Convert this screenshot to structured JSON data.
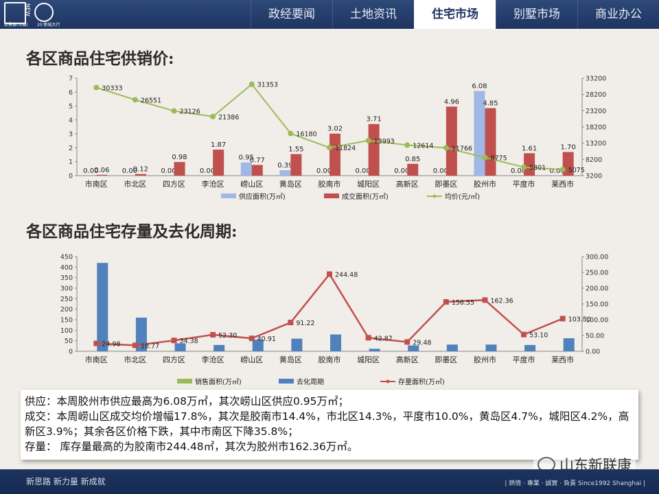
{
  "nav": {
    "logo_text1": "新景泰(中國)",
    "logo_text2": "20 新城大行",
    "logo_new": "NEW",
    "tabs": [
      {
        "label": "政经要闻",
        "active": false
      },
      {
        "label": "土地资讯",
        "active": false
      },
      {
        "label": "住宅市场",
        "active": true
      },
      {
        "label": "别墅市场",
        "active": false
      },
      {
        "label": "商业办公",
        "active": false
      }
    ]
  },
  "section1_title": "各区商品住宅供销价:",
  "section2_title": "各区商品住宅存量及去化周期:",
  "colors": {
    "supply": "#9fb8e6",
    "deal": "#c0504d",
    "price": "#9bbb59",
    "cycle": "#4f81bd",
    "stock": "#c0504d"
  },
  "chart_data": [
    {
      "type": "bar",
      "categories": [
        "市南区",
        "市北区",
        "四方区",
        "李沧区",
        "崂山区",
        "黄岛区",
        "胶南市",
        "城阳区",
        "高新区",
        "即墨区",
        "胶州市",
        "平度市",
        "莱西市"
      ],
      "series": [
        {
          "name": "供应面积(万㎡)",
          "type": "bar",
          "axis": "left",
          "values": [
            0.0,
            0.0,
            0.0,
            0.0,
            0.95,
            0.39,
            0.0,
            0.0,
            0.0,
            0.0,
            6.08,
            0.0,
            0.0
          ]
        },
        {
          "name": "成交面积(万㎡)",
          "type": "bar",
          "axis": "left",
          "values": [
            0.06,
            0.12,
            0.98,
            1.87,
            0.77,
            1.55,
            3.02,
            3.71,
            0.85,
            4.96,
            4.85,
            1.61,
            1.7
          ]
        },
        {
          "name": "均价(元/㎡)",
          "type": "line",
          "axis": "right",
          "values": [
            30333,
            26551,
            23126,
            21386,
            31353,
            16180,
            11824,
            13993,
            12614,
            11766,
            8775,
            5801,
            5075
          ]
        }
      ],
      "yticks_left": [
        "0",
        "1",
        "2",
        "3",
        "4",
        "5",
        "6",
        "7"
      ],
      "yticks_right": [
        "3200",
        "8200",
        "13200",
        "18200",
        "23200",
        "28200",
        "33200"
      ],
      "ylim_left": [
        0,
        7
      ],
      "ylim_right": [
        3200,
        33200
      ]
    },
    {
      "type": "bar",
      "categories": [
        "市南区",
        "市北区",
        "四方区",
        "李沧区",
        "崂山区",
        "黄岛区",
        "胶南市",
        "城阳区",
        "高新区",
        "即墨区",
        "胶州市",
        "平度市",
        "莱西市"
      ],
      "series": [
        {
          "name": "销售面积(万㎡)",
          "type": "bar",
          "axis": "left",
          "values": [
            0,
            0,
            0,
            0,
            0,
            0,
            0,
            0,
            0,
            0,
            0,
            0,
            0
          ]
        },
        {
          "name": "去化周期",
          "type": "bar",
          "axis": "left",
          "values": [
            420,
            160,
            38,
            30,
            55,
            60,
            80,
            12,
            28,
            32,
            32,
            30,
            62
          ]
        },
        {
          "name": "存量面积(万㎡)",
          "type": "line",
          "axis": "right",
          "values": [
            24.98,
            18.77,
            34.38,
            52.3,
            40.91,
            91.22,
            244.48,
            42.87,
            29.48,
            156.55,
            162.36,
            53.1,
            103.5
          ]
        }
      ],
      "value_labels": [
        "24.98",
        "18.77",
        "34.38",
        "52.30",
        "40.91",
        "91.22",
        "244.48",
        "42.87",
        "29.48",
        "156.55",
        "162.36",
        "53.10",
        "103.50"
      ],
      "yticks_left": [
        "0",
        "50",
        "100",
        "150",
        "200",
        "250",
        "300",
        "350",
        "400",
        "450"
      ],
      "yticks_right": [
        "0.00",
        "50.00",
        "100.00",
        "150.00",
        "200.00",
        "250.00",
        "300.00"
      ],
      "ylim_left": [
        0,
        450
      ],
      "ylim_right": [
        0,
        300
      ]
    }
  ],
  "notes": [
    "供应：本周胶州市供应最高为6.08万㎡，其次崂山区供应0.95万㎡；",
    "成交：本周崂山区成交均价增幅17.8%，其次是胶南市14.4%，市北区14.3%，平度市10.0%，黄岛区4.7%，城阳区4.2%，高新区3.9%；其余各区价格下跌，其中市南区下降35.8%；",
    "存量： 库存量最高的为胶南市244.48㎡，其次为胶州市162.36万㎡。"
  ],
  "watermark": "山东新联康",
  "footer": {
    "slogan": "新思路  新力量  新成就",
    "tagline": "|  熱情 · 專業 · 誠實 · 負責  Since1992 Shanghai  |"
  }
}
